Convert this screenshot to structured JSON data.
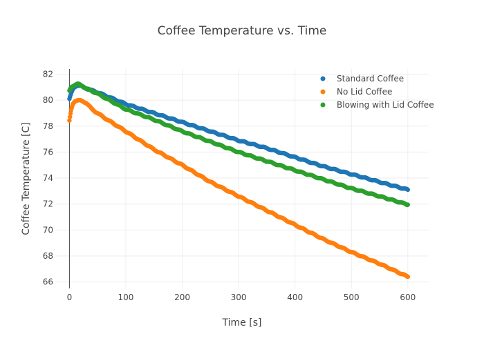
{
  "chart_data": {
    "type": "scatter",
    "title": "Coffee Temperature vs. Time",
    "xlabel": "Time [s]",
    "ylabel": "Coffee Temperature [C]",
    "xlim": [
      -25,
      637
    ],
    "ylim": [
      65.5,
      82.4
    ],
    "xticks": [
      0,
      100,
      200,
      300,
      400,
      500,
      600
    ],
    "yticks": [
      66,
      68,
      70,
      72,
      74,
      76,
      78,
      80,
      82
    ],
    "grid": true,
    "legend_position": "top-right",
    "series": [
      {
        "name": "Standard Coffee",
        "color": "#1f77b4",
        "points": [
          [
            0,
            80.1
          ],
          [
            3,
            80.5
          ],
          [
            6,
            80.8
          ],
          [
            9,
            81.0
          ],
          [
            12,
            81.1
          ],
          [
            15,
            81.15
          ],
          [
            20,
            81.1
          ],
          [
            30,
            80.9
          ],
          [
            50,
            80.6
          ],
          [
            100,
            79.7
          ],
          [
            150,
            79.0
          ],
          [
            200,
            78.3
          ],
          [
            250,
            77.6
          ],
          [
            300,
            76.9
          ],
          [
            350,
            76.3
          ],
          [
            400,
            75.6
          ],
          [
            450,
            74.9
          ],
          [
            500,
            74.3
          ],
          [
            550,
            73.7
          ],
          [
            600,
            73.1
          ]
        ]
      },
      {
        "name": "No Lid Coffee",
        "color": "#ff7f0e",
        "points": [
          [
            0,
            78.4
          ],
          [
            3,
            79.2
          ],
          [
            6,
            79.7
          ],
          [
            10,
            79.95
          ],
          [
            15,
            80.0
          ],
          [
            20,
            79.95
          ],
          [
            30,
            79.8
          ],
          [
            40,
            79.3
          ],
          [
            60,
            78.7
          ],
          [
            100,
            77.6
          ],
          [
            150,
            76.2
          ],
          [
            200,
            75.0
          ],
          [
            250,
            73.7
          ],
          [
            300,
            72.6
          ],
          [
            350,
            71.5
          ],
          [
            400,
            70.4
          ],
          [
            450,
            69.3
          ],
          [
            500,
            68.3
          ],
          [
            550,
            67.4
          ],
          [
            600,
            66.4
          ]
        ]
      },
      {
        "name": "Blowing with Lid Coffee",
        "color": "#2ca02c",
        "points": [
          [
            0,
            80.7
          ],
          [
            3,
            81.0
          ],
          [
            6,
            81.1
          ],
          [
            10,
            81.2
          ],
          [
            15,
            81.25
          ],
          [
            20,
            81.15
          ],
          [
            30,
            80.9
          ],
          [
            50,
            80.5
          ],
          [
            100,
            79.3
          ],
          [
            150,
            78.5
          ],
          [
            200,
            77.6
          ],
          [
            250,
            76.8
          ],
          [
            300,
            76.0
          ],
          [
            350,
            75.3
          ],
          [
            400,
            74.6
          ],
          [
            450,
            73.9
          ],
          [
            500,
            73.2
          ],
          [
            550,
            72.6
          ],
          [
            600,
            71.95
          ]
        ]
      }
    ]
  }
}
